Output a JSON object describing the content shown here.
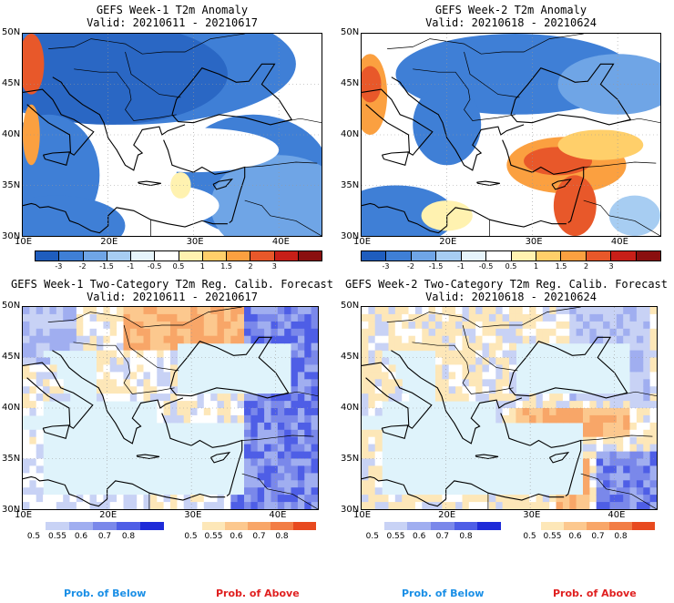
{
  "panels": [
    {
      "title": "GEFS Week-1 T2m Anomaly",
      "valid": "Valid: 20210611 - 20210617"
    },
    {
      "title": "GEFS Week-2 T2m Anomaly",
      "valid": "Valid: 20210618 - 20210624"
    },
    {
      "title": "GEFS Week-1 Two-Category T2m Reg. Calib. Forecast",
      "valid": "Valid: 20210611 - 20210617"
    },
    {
      "title": "GEFS Week-2 Two-Category T2m Reg. Calib. Forecast",
      "valid": "Valid: 20210618 - 20210624"
    }
  ],
  "axes": {
    "lat_labels": [
      "50N",
      "45N",
      "40N",
      "35N",
      "30N"
    ],
    "lon_labels": [
      "10E",
      "20E",
      "30E",
      "40E"
    ]
  },
  "anomaly_colorbar": {
    "ticks": [
      "-3",
      "-2",
      "-1.5",
      "-1",
      "-0.5",
      "0.5",
      "1",
      "1.5",
      "2",
      "3"
    ],
    "colors": [
      "#1f5dbe",
      "#3f7fd6",
      "#6fa5e6",
      "#a7cdf2",
      "#e6f4fb",
      "#ffffff",
      "#fff2b0",
      "#ffcf6a",
      "#fba040",
      "#e8582a",
      "#c81f18",
      "#8a0f0f"
    ]
  },
  "prob_below_bar": {
    "ticks": [
      "0.5",
      "0.55",
      "0.6",
      "0.7",
      "0.8"
    ],
    "colors": [
      "#ffffff",
      "#c8d2f5",
      "#a0aef0",
      "#7a88ea",
      "#4e5ee6",
      "#1e2bd8"
    ]
  },
  "prob_above_bar": {
    "ticks": [
      "0.5",
      "0.55",
      "0.6",
      "0.7",
      "0.8"
    ],
    "colors": [
      "#ffffff",
      "#fde7b8",
      "#fcc88e",
      "#f8a668",
      "#f27d45",
      "#e84a1f"
    ]
  },
  "legend": {
    "below": "Prob. of Below",
    "above": "Prob. of Above",
    "below_color": "#1a8fe6",
    "above_color": "#e02020"
  },
  "colors": {
    "sea_light": "#dff3fb",
    "land_base_blue": "#4c87d8",
    "land_base_white": "#ffffff"
  }
}
